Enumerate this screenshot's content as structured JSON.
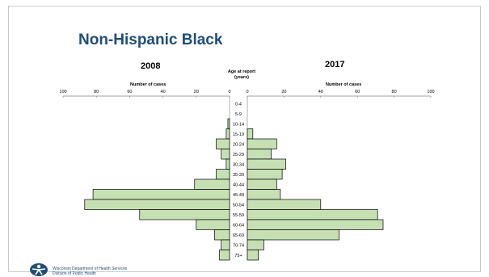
{
  "slide": {
    "title": "Non-Hispanic Black",
    "footer_line1": "Wisconsin Department of Health Services",
    "footer_line2": "Division of Public Health"
  },
  "colors": {
    "bar_fill": "#c6e0b4",
    "bar_stroke": "#000000",
    "title": "#1f4e79",
    "axis": "#808080"
  },
  "chart_data": {
    "type": "bar",
    "orientation": "horizontal-butterfly",
    "center_label": "Age at report (years)",
    "categories": [
      "0-4",
      "5-9",
      "10-14",
      "15-19",
      "20-24",
      "25-29",
      "30-34",
      "35-39",
      "40-44",
      "45-49",
      "50-54",
      "55-59",
      "60-64",
      "65-69",
      "70-74",
      "75+"
    ],
    "series": [
      {
        "name": "2008",
        "xlabel": "Number of cases",
        "xlim": [
          0,
          100
        ],
        "ticks": [
          100,
          80,
          60,
          40,
          20,
          0
        ],
        "values": [
          0,
          0,
          1,
          2,
          8,
          5,
          2,
          8,
          21,
          82,
          87,
          54,
          20,
          9,
          5,
          6
        ]
      },
      {
        "name": "2017",
        "xlabel": "Number of cases",
        "xlim": [
          0,
          100
        ],
        "ticks": [
          0,
          20,
          40,
          60,
          80,
          100
        ],
        "values": [
          0,
          0,
          0,
          3,
          16,
          13,
          21,
          19,
          16,
          18,
          40,
          71,
          74,
          50,
          9,
          6
        ]
      }
    ]
  }
}
